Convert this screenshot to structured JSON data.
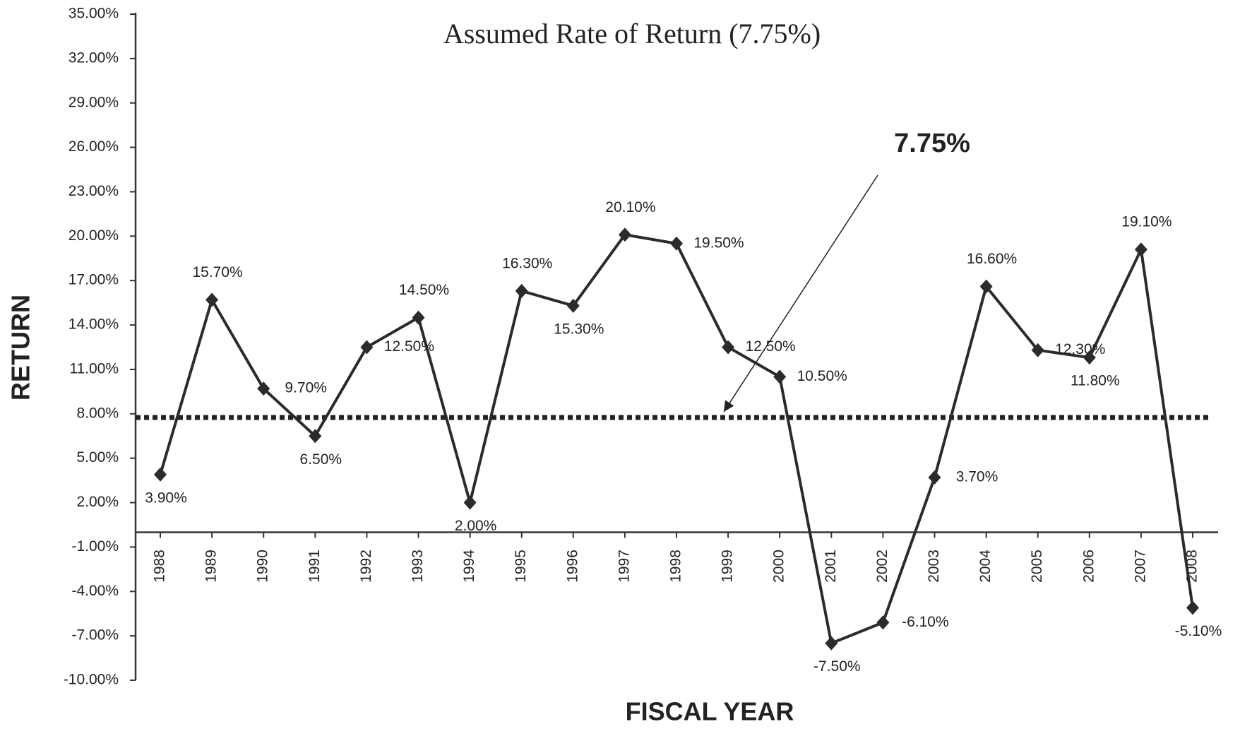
{
  "chart_data": {
    "type": "line",
    "title": "Assumed Rate of Return (7.75%)",
    "x_label": "FISCAL YEAR",
    "y_label": "RETURN",
    "categories": [
      "1988",
      "1989",
      "1990",
      "1991",
      "1992",
      "1993",
      "1994",
      "1995",
      "1996",
      "1997",
      "1998",
      "1999",
      "2000",
      "2001",
      "2002",
      "2003",
      "2004",
      "2005",
      "2006",
      "2007",
      "2008"
    ],
    "series": [
      {
        "name": "Return",
        "color": "#2b2b2b",
        "values": [
          3.9,
          15.7,
          9.7,
          6.5,
          12.5,
          14.5,
          2.0,
          16.3,
          15.3,
          20.1,
          19.5,
          12.5,
          10.5,
          -7.5,
          -6.1,
          3.7,
          16.6,
          12.3,
          11.8,
          19.1,
          -5.1
        ],
        "value_labels": [
          "3.90%",
          "15.70%",
          "9.70%",
          "6.50%",
          "12.50%",
          "14.50%",
          "2.00%",
          "16.30%",
          "15.30%",
          "20.10%",
          "19.50%",
          "12.50%",
          "10.50%",
          "-7.50%",
          "-6.10%",
          "3.70%",
          "16.60%",
          "12.30%",
          "11.80%",
          "19.10%",
          "-5.10%"
        ]
      }
    ],
    "reference_line": {
      "value": 7.75,
      "label": "7.75%"
    },
    "ylim": [
      -10,
      35
    ],
    "yticks": [
      {
        "value": -10,
        "label": "-10.00%"
      },
      {
        "value": -7,
        "label": "-7.00%"
      },
      {
        "value": -4,
        "label": "-4.00%"
      },
      {
        "value": -1,
        "label": "-1.00%"
      },
      {
        "value": 2,
        "label": "2.00%"
      },
      {
        "value": 5,
        "label": "5.00%"
      },
      {
        "value": 8,
        "label": "8.00%"
      },
      {
        "value": 11,
        "label": "11.00%"
      },
      {
        "value": 14,
        "label": "14.00%"
      },
      {
        "value": 17,
        "label": "17.00%"
      },
      {
        "value": 20,
        "label": "20.00%"
      },
      {
        "value": 23,
        "label": "23.00%"
      },
      {
        "value": 26,
        "label": "26.00%"
      },
      {
        "value": 29,
        "label": "29.00%"
      },
      {
        "value": 32,
        "label": "32.00%"
      },
      {
        "value": 35,
        "label": "35.00%"
      }
    ],
    "grid": false
  }
}
